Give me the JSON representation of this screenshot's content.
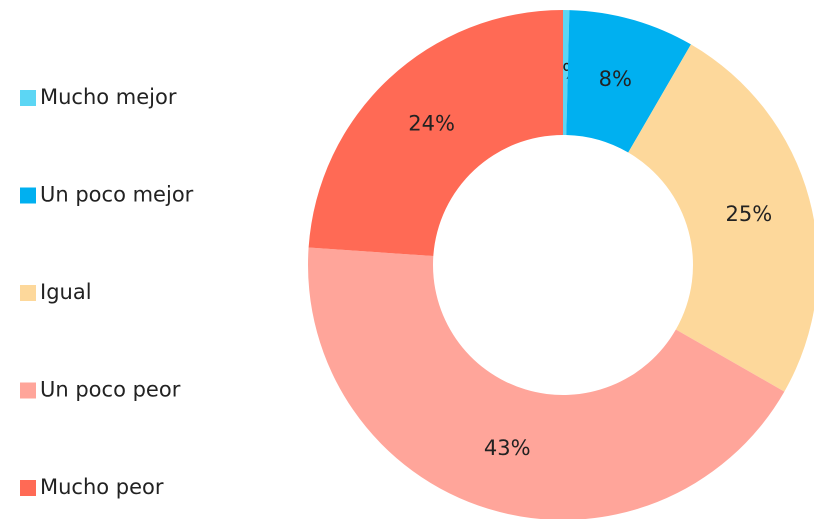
{
  "chart_data": {
    "type": "donut",
    "categories": [
      "Mucho mejor",
      "Un poco mejor",
      "Igual",
      "Un poco peor",
      "Mucho peor"
    ],
    "values": [
      0.4,
      8,
      25,
      43,
      24
    ],
    "value_labels": [
      "0%",
      "8%",
      "25%",
      "43%",
      "24%"
    ],
    "colors": [
      "#5cd6f4",
      "#00b0f0",
      "#fdd89b",
      "#ffa59a",
      "#ff6a55"
    ],
    "legend": "left"
  }
}
